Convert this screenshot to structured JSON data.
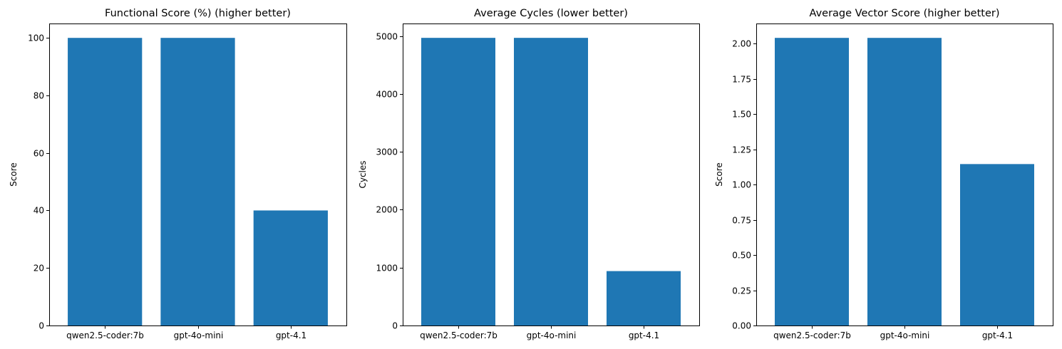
{
  "chart_data": [
    {
      "type": "bar",
      "title": "Functional Score (%) (higher better)",
      "xlabel": "",
      "ylabel": "Score",
      "categories": [
        "qwen2.5-coder:7b",
        "gpt-4o-mini",
        "gpt-4.1"
      ],
      "values": [
        100,
        100,
        40
      ],
      "ylim": [
        0,
        105
      ],
      "yticks": [
        0,
        20,
        40,
        60,
        80,
        100
      ],
      "ytick_labels": [
        "0",
        "20",
        "40",
        "60",
        "80",
        "100"
      ],
      "color": "#1f77b4"
    },
    {
      "type": "bar",
      "title": "Average Cycles (lower better)",
      "xlabel": "",
      "ylabel": "Cycles",
      "categories": [
        "qwen2.5-coder:7b",
        "gpt-4o-mini",
        "gpt-4.1"
      ],
      "values": [
        4970,
        4970,
        940
      ],
      "ylim": [
        0,
        5218
      ],
      "yticks": [
        0,
        1000,
        2000,
        3000,
        4000,
        5000
      ],
      "ytick_labels": [
        "0",
        "1000",
        "2000",
        "3000",
        "4000",
        "5000"
      ],
      "color": "#1f77b4"
    },
    {
      "type": "bar",
      "title": "Average Vector Score (higher better)",
      "xlabel": "",
      "ylabel": "Score",
      "categories": [
        "qwen2.5-coder:7b",
        "gpt-4o-mini",
        "gpt-4.1"
      ],
      "values": [
        2.04,
        2.04,
        1.145
      ],
      "ylim": [
        0,
        2.142
      ],
      "yticks": [
        0,
        0.25,
        0.5,
        0.75,
        1.0,
        1.25,
        1.5,
        1.75,
        2.0
      ],
      "ytick_labels": [
        "0.00",
        "0.25",
        "0.50",
        "0.75",
        "1.00",
        "1.25",
        "1.50",
        "1.75",
        "2.00"
      ],
      "color": "#1f77b4"
    }
  ]
}
